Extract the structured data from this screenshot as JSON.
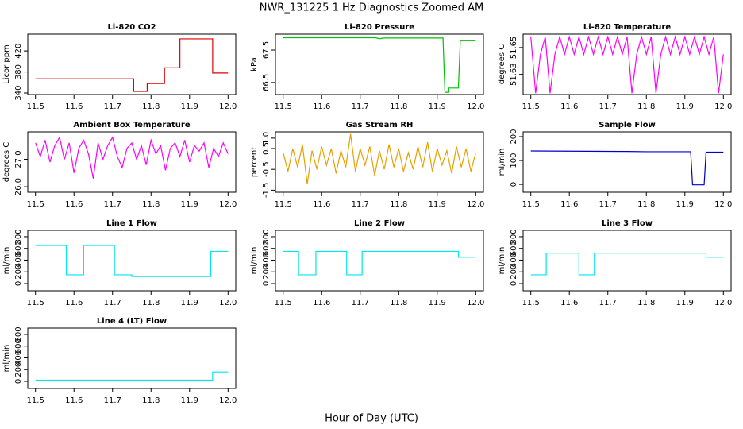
{
  "title": "NWR_131225  1 Hz Diagnostics Zoomed AM",
  "x_label": "Hour of Day (UTC)",
  "chart_data": [
    {
      "type": "line",
      "title": "Li-820 CO2",
      "y_label": "Licor ppm",
      "color": "#e00000",
      "x": [
        11.5,
        11.755,
        11.755,
        11.79,
        11.79,
        11.835,
        11.835,
        11.875,
        11.875,
        11.96,
        11.96,
        12.0
      ],
      "values": [
        367,
        367,
        343,
        343,
        358,
        358,
        388,
        388,
        443,
        443,
        378,
        378
      ],
      "xlim": [
        11.48,
        12.02
      ],
      "xticks": [
        11.5,
        11.6,
        11.7,
        11.8,
        11.9,
        {
          "value": 12,
          "label": "12.0"
        }
      ],
      "ylim": [
        337,
        452
      ],
      "yticks": [
        340,
        380,
        420
      ]
    },
    {
      "type": "line",
      "title": "Li-820 Pressure",
      "y_label": "kPa",
      "color": "#00c000",
      "x": [
        11.5,
        11.74,
        11.75,
        11.76,
        11.915,
        11.92,
        11.93,
        11.93,
        11.955,
        11.96,
        12.0
      ],
      "values": [
        67.88,
        67.88,
        67.85,
        67.87,
        67.87,
        66.2,
        66.2,
        66.33,
        66.33,
        67.8,
        67.8
      ],
      "xlim": [
        11.48,
        12.02
      ],
      "xticks": [
        11.5,
        11.6,
        11.7,
        11.8,
        11.9,
        {
          "value": 12,
          "label": "12.0"
        }
      ],
      "ylim": [
        66.13,
        67.99
      ],
      "yticks": [
        66.5,
        67.5
      ]
    },
    {
      "type": "line",
      "title": "Li-820 Temperature",
      "y_label": "degrees C",
      "color": "#ff00ff",
      "x": [
        11.5,
        11.5125,
        11.525,
        11.5375,
        11.55,
        11.5625,
        11.575,
        11.5875,
        11.6,
        11.6125,
        11.625,
        11.6375,
        11.65,
        11.6625,
        11.675,
        11.6875,
        11.7,
        11.7125,
        11.725,
        11.7375,
        11.75,
        11.7625,
        11.775,
        11.7875,
        11.8,
        11.8125,
        11.825,
        11.8375,
        11.85,
        11.8625,
        11.875,
        11.8875,
        11.9,
        11.9125,
        11.925,
        11.9375,
        11.95,
        11.9625,
        11.975,
        11.9875,
        12.0
      ],
      "values": [
        51.658,
        51.616,
        51.645,
        51.658,
        51.616,
        51.645,
        51.658,
        51.645,
        51.658,
        51.645,
        51.658,
        51.645,
        51.658,
        51.645,
        51.658,
        51.645,
        51.658,
        51.645,
        51.658,
        51.645,
        51.658,
        51.616,
        51.645,
        51.658,
        51.645,
        51.658,
        51.616,
        51.645,
        51.658,
        51.645,
        51.658,
        51.645,
        51.658,
        51.645,
        51.658,
        51.645,
        51.658,
        51.645,
        51.658,
        51.616,
        51.645
      ],
      "xlim": [
        11.48,
        12.02
      ],
      "xticks": [
        11.5,
        11.6,
        11.7,
        11.8,
        11.9,
        {
          "value": 12,
          "label": "12.0"
        }
      ],
      "ylim": [
        51.615,
        51.66
      ],
      "yticks": [
        51.63,
        51.65
      ]
    },
    {
      "type": "line",
      "title": "Ambient Box Temperature",
      "y_label": "degrees C",
      "color": "#ff00ff",
      "x": [
        11.5,
        11.5125,
        11.525,
        11.5375,
        11.55,
        11.5625,
        11.575,
        11.5875,
        11.6,
        11.6125,
        11.625,
        11.6375,
        11.65,
        11.6625,
        11.675,
        11.6875,
        11.7,
        11.7125,
        11.725,
        11.7375,
        11.75,
        11.7625,
        11.775,
        11.7875,
        11.8,
        11.8125,
        11.825,
        11.8375,
        11.85,
        11.8625,
        11.875,
        11.8875,
        11.9,
        11.9125,
        11.925,
        11.9375,
        11.95,
        11.9625,
        11.975,
        11.9875,
        12.0
      ],
      "values": [
        27.6,
        27.1,
        27.7,
        26.9,
        27.5,
        27.8,
        27.0,
        27.6,
        26.5,
        27.4,
        27.7,
        27.2,
        26.3,
        27.6,
        27.0,
        27.5,
        27.8,
        27.1,
        26.7,
        27.4,
        27.6,
        27.0,
        27.5,
        26.8,
        27.7,
        27.2,
        27.5,
        26.6,
        27.4,
        27.6,
        27.1,
        27.7,
        26.9,
        27.5,
        27.3,
        27.6,
        26.7,
        27.4,
        27.1,
        27.6,
        27.2
      ],
      "xlim": [
        11.48,
        12.02
      ],
      "xticks": [
        11.5,
        11.6,
        11.7,
        11.8,
        11.9,
        {
          "value": 12,
          "label": "12.0"
        }
      ],
      "ylim": [
        25.8,
        28.0
      ],
      "yticks": [
        {
          "value": 26,
          "label": "26.0"
        },
        {
          "value": 27,
          "label": "27.0"
        }
      ]
    },
    {
      "type": "line",
      "title": "Gas Stream RH",
      "y_label": "percent",
      "color": "#e8a000",
      "x": [
        11.5,
        11.5125,
        11.525,
        11.5375,
        11.55,
        11.5625,
        11.575,
        11.5875,
        11.6,
        11.6125,
        11.625,
        11.6375,
        11.65,
        11.6625,
        11.675,
        11.6875,
        11.7,
        11.7125,
        11.725,
        11.7375,
        11.75,
        11.7625,
        11.775,
        11.7875,
        11.8,
        11.8125,
        11.825,
        11.8375,
        11.85,
        11.8625,
        11.875,
        11.8875,
        11.9,
        11.9125,
        11.925,
        11.9375,
        11.95,
        11.9625,
        11.975,
        11.9875,
        12.0
      ],
      "values": [
        0.3,
        -0.6,
        0.5,
        -0.4,
        0.7,
        -1.2,
        0.4,
        -0.5,
        0.6,
        -0.3,
        0.5,
        -0.7,
        0.4,
        -0.4,
        1.2,
        -0.6,
        0.5,
        -0.3,
        0.6,
        -0.8,
        0.4,
        -0.5,
        0.7,
        -0.4,
        0.5,
        -0.6,
        0.3,
        -0.5,
        0.6,
        -0.4,
        0.8,
        -0.6,
        0.5,
        -0.3,
        0.4,
        -0.7,
        0.6,
        -0.4,
        0.5,
        -0.6,
        0.3
      ],
      "xlim": [
        11.48,
        12.02
      ],
      "xticks": [
        11.5,
        11.6,
        11.7,
        11.8,
        11.9,
        {
          "value": 12,
          "label": "12.0"
        }
      ],
      "ylim": [
        -1.6,
        1.3
      ],
      "yticks": [
        -1.5,
        -0.5,
        0.5,
        {
          "value": 1,
          "label": "1.0"
        }
      ]
    },
    {
      "type": "line",
      "title": "Sample Flow",
      "y_label": "ml/min",
      "color": "#0000c8",
      "x": [
        11.5,
        11.75,
        11.8,
        11.915,
        11.92,
        11.95,
        11.955,
        12.0
      ],
      "values": [
        140,
        138,
        137,
        137,
        -2,
        -2,
        135,
        135
      ],
      "xlim": [
        11.48,
        12.02
      ],
      "xticks": [
        11.5,
        11.6,
        11.7,
        11.8,
        11.9,
        {
          "value": 12,
          "label": "12.0"
        }
      ],
      "ylim": [
        -33,
        220
      ],
      "yticks": [
        0,
        100,
        200
      ]
    },
    {
      "type": "line",
      "title": "Line 1 Flow",
      "y_label": "ml/min",
      "color": "#00e5ee",
      "x": [
        11.5,
        11.58,
        11.58,
        11.625,
        11.625,
        11.705,
        11.705,
        11.75,
        11.75,
        11.955,
        11.955,
        12.0
      ],
      "values": [
        650,
        650,
        150,
        150,
        650,
        650,
        150,
        150,
        120,
        120,
        550,
        550
      ],
      "xlim": [
        11.48,
        12.02
      ],
      "xticks": [
        11.5,
        11.6,
        11.7,
        11.8,
        11.9,
        {
          "value": 12,
          "label": "12.0"
        }
      ],
      "ylim": [
        -122,
        908
      ],
      "yticks": [
        0,
        200,
        400,
        600,
        800
      ]
    },
    {
      "type": "line",
      "title": "Line 2 Flow",
      "y_label": "ml/min",
      "color": "#00e5ee",
      "x": [
        11.5,
        11.54,
        11.54,
        11.585,
        11.585,
        11.665,
        11.665,
        11.705,
        11.705,
        11.955,
        11.955,
        12.0
      ],
      "values": [
        550,
        550,
        150,
        150,
        550,
        550,
        150,
        150,
        550,
        550,
        450,
        450
      ],
      "xlim": [
        11.48,
        12.02
      ],
      "xticks": [
        11.5,
        11.6,
        11.7,
        11.8,
        11.9,
        {
          "value": 12,
          "label": "12.0"
        }
      ],
      "ylim": [
        -122,
        908
      ],
      "yticks": [
        0,
        200,
        400,
        600,
        800
      ]
    },
    {
      "type": "line",
      "title": "Line 3 Flow",
      "y_label": "ml/min",
      "color": "#00e5ee",
      "x": [
        11.5,
        11.54,
        11.54,
        11.625,
        11.625,
        11.665,
        11.665,
        11.955,
        11.955,
        12.0
      ],
      "values": [
        150,
        150,
        520,
        520,
        150,
        150,
        520,
        520,
        450,
        450
      ],
      "xlim": [
        11.48,
        12.02
      ],
      "xticks": [
        11.5,
        11.6,
        11.7,
        11.8,
        11.9,
        {
          "value": 12,
          "label": "12.0"
        }
      ],
      "ylim": [
        -122,
        908
      ],
      "yticks": [
        0,
        200,
        400,
        600,
        800
      ]
    },
    {
      "type": "line",
      "title": "Line 4 (LT) Flow",
      "y_label": "ml/min",
      "color": "#00e5ee",
      "x": [
        11.5,
        11.96,
        11.96,
        12.0
      ],
      "values": [
        20,
        20,
        160,
        160
      ],
      "xlim": [
        11.48,
        12.02
      ],
      "xticks": [
        11.5,
        11.6,
        11.7,
        11.8,
        11.9,
        {
          "value": 12,
          "label": "12.0"
        }
      ],
      "ylim": [
        -122,
        908
      ],
      "yticks": [
        0,
        200,
        400,
        600,
        800
      ]
    }
  ]
}
